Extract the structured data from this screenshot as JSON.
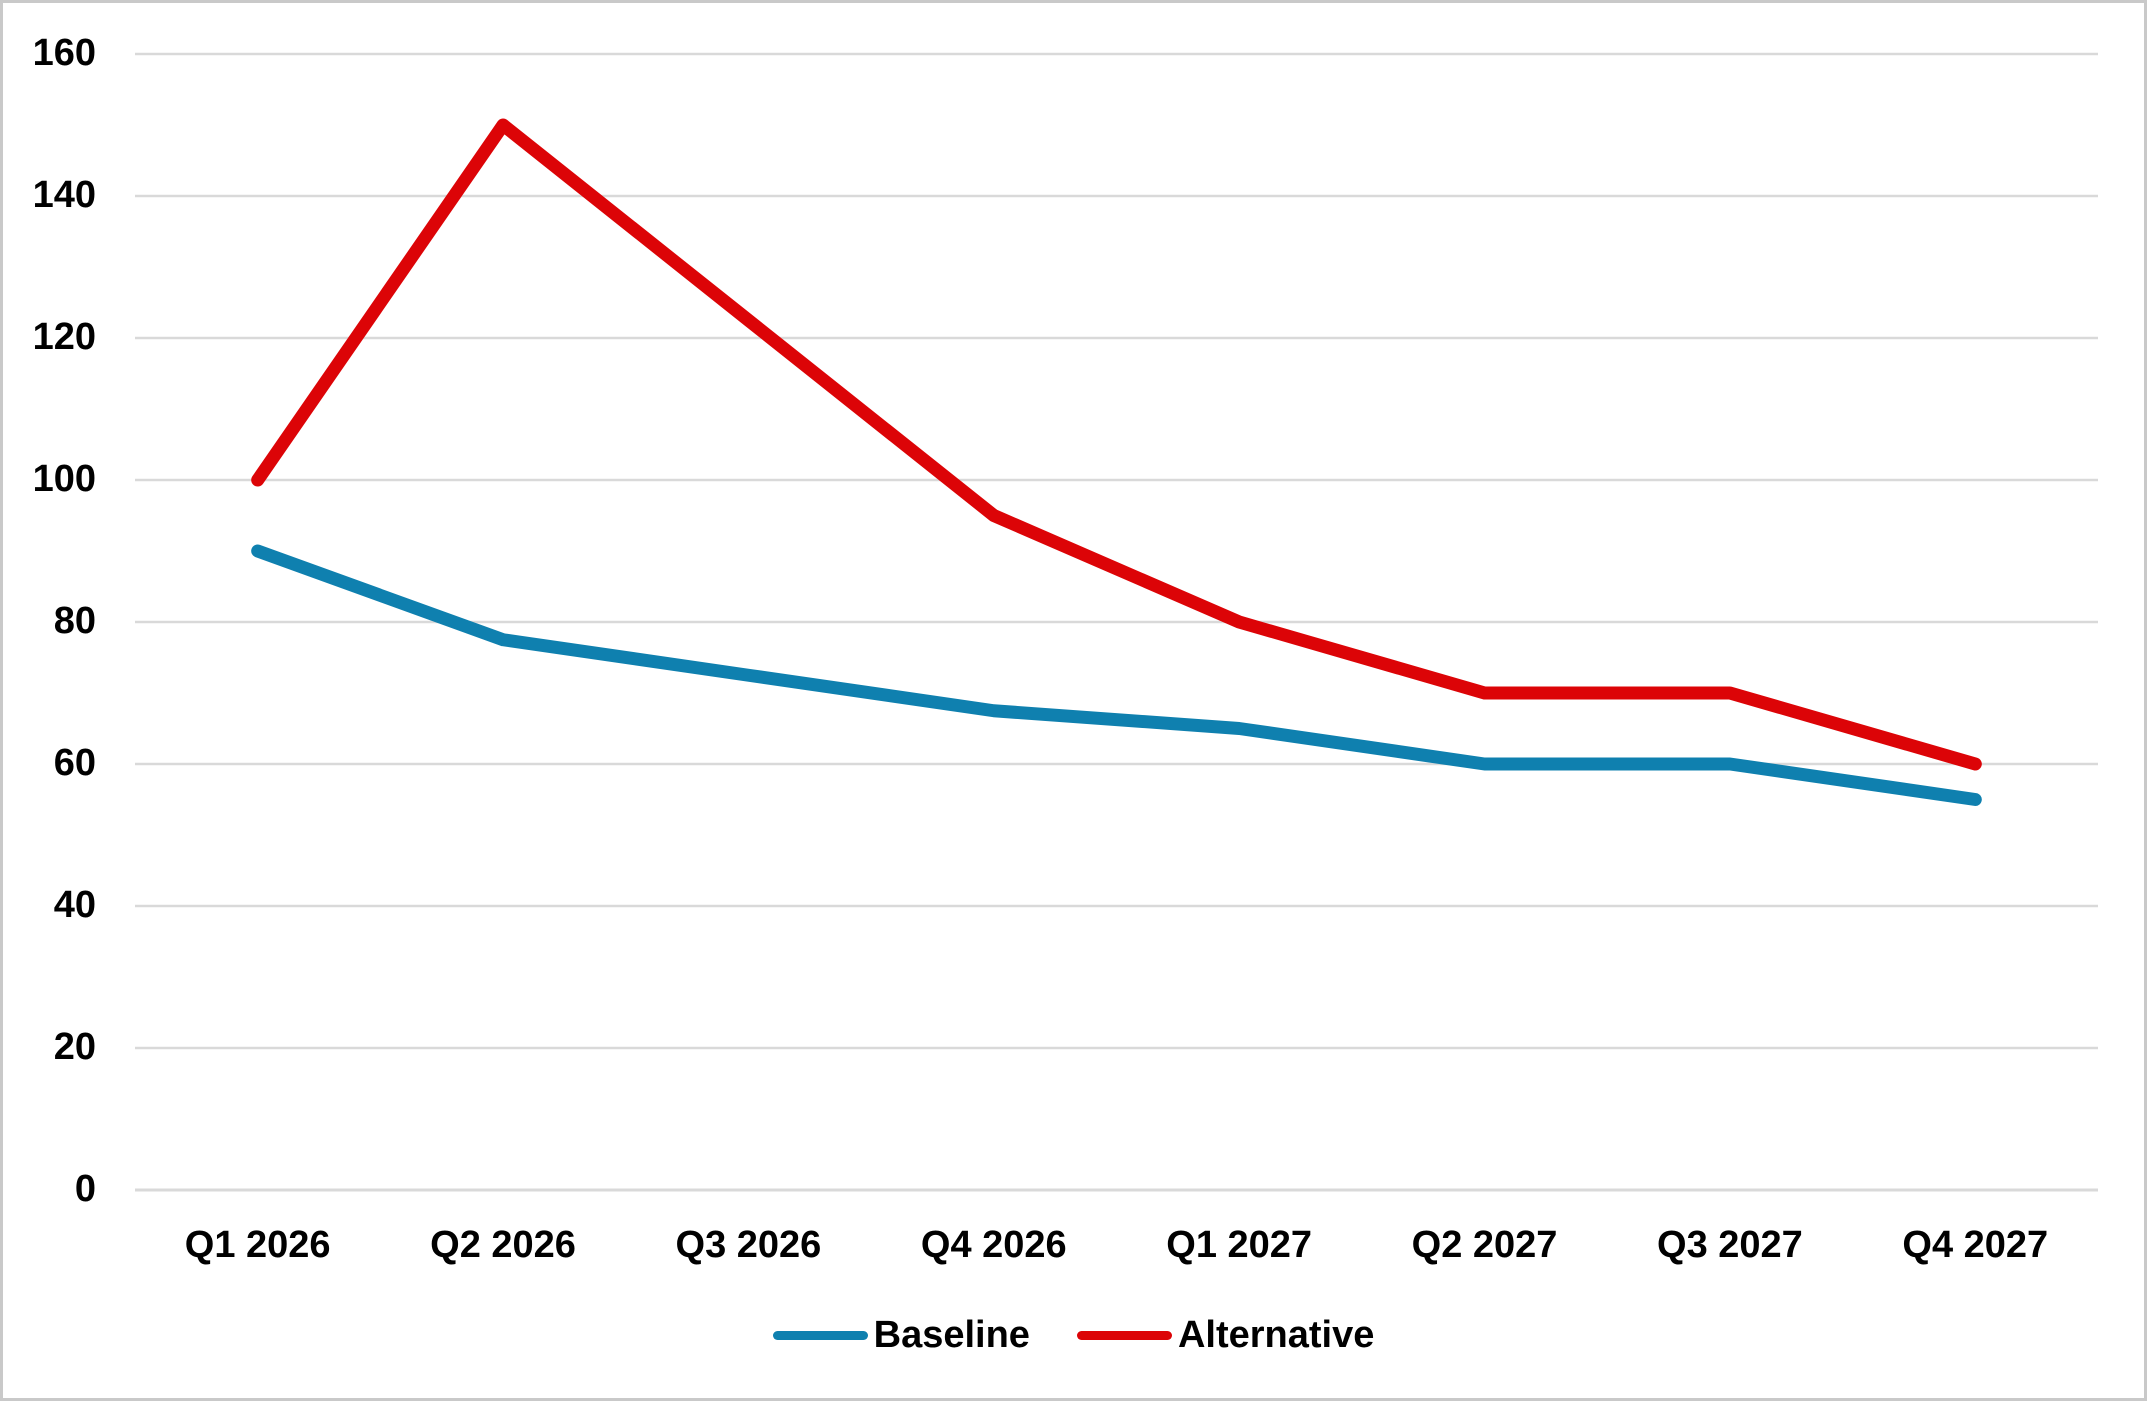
{
  "chart_data": {
    "type": "line",
    "categories": [
      "Q1 2026",
      "Q2 2026",
      "Q3 2026",
      "Q4 2026",
      "Q1 2027",
      "Q2 2027",
      "Q3 2027",
      "Q4 2027"
    ],
    "series": [
      {
        "name": "Baseline",
        "color": "#0F80AF",
        "values": [
          90,
          77.5,
          72.5,
          67.5,
          65,
          60,
          60,
          55
        ]
      },
      {
        "name": "Alternative",
        "color": "#DC0407",
        "values": [
          100,
          150,
          122.5,
          95,
          80,
          70,
          70,
          60
        ]
      }
    ],
    "title": "",
    "xlabel": "",
    "ylabel": "",
    "ylim": [
      0,
      160
    ],
    "yticks": [
      0,
      20,
      40,
      60,
      80,
      100,
      120,
      140,
      160
    ],
    "grid": "horizontal",
    "gridline_color": "#D9D9D9",
    "text_color": "#000000",
    "legend_position": "bottom"
  }
}
